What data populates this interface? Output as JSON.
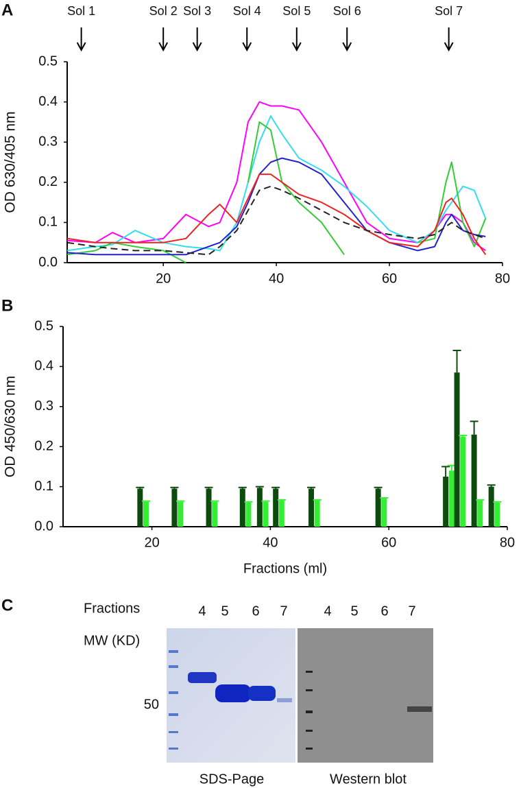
{
  "chart_data": [
    {
      "type": "line",
      "panel": "A",
      "y_label": "OD 630/405 nm",
      "xlim": [
        3,
        80
      ],
      "xticks": [
        20,
        40,
        60,
        80
      ],
      "ylim": [
        0,
        0.5
      ],
      "yticks": [
        {
          "value": 0,
          "label": "0.0"
        },
        0.1,
        0.2,
        0.3,
        0.4,
        0.5
      ],
      "annotations": [
        {
          "text": "Sol 1",
          "x": 5.5
        },
        {
          "text": "Sol 2",
          "x": 20
        },
        {
          "text": "Sol 3",
          "x": 26
        },
        {
          "text": "Sol 4",
          "x": 34.8
        },
        {
          "text": "Sol 5",
          "x": 43.6
        },
        {
          "text": "Sol 6",
          "x": 52.5
        },
        {
          "text": "Sol 7",
          "x": 70.5
        }
      ],
      "x": [
        3,
        8,
        11,
        15,
        20,
        24,
        28,
        30,
        33,
        35,
        37,
        39,
        41,
        44,
        48,
        52,
        56,
        60,
        65,
        68,
        70,
        71,
        73,
        75,
        77
      ],
      "series": [
        {
          "color": "#ff00ff",
          "dashed": false,
          "values": [
            0.055,
            0.05,
            0.075,
            0.05,
            0.06,
            0.12,
            0.09,
            0.1,
            0.2,
            0.35,
            0.4,
            0.39,
            0.39,
            0.38,
            0.3,
            0.2,
            0.1,
            0.06,
            0.05,
            0.08,
            0.12,
            0.12,
            0.1,
            0.05,
            0.03
          ]
        },
        {
          "color": "#33ddee",
          "dashed": false,
          "values": [
            0.03,
            0.04,
            0.045,
            0.08,
            0.05,
            0.04,
            0.035,
            0.03,
            0.1,
            0.2,
            0.3,
            0.365,
            0.32,
            0.26,
            0.23,
            0.19,
            0.14,
            0.08,
            0.05,
            0.08,
            0.13,
            0.15,
            0.19,
            0.18,
            0.11
          ]
        },
        {
          "color": "#33cc33",
          "dashed": false,
          "values": [
            0.02,
            0.03,
            0.05,
            0.04,
            0.03,
            0.0,
            null,
            null,
            null,
            0.2,
            0.35,
            0.33,
            0.2,
            0.15,
            0.1,
            0.02,
            null,
            null,
            0.05,
            0.06,
            0.2,
            0.25,
            0.1,
            0.04,
            0.11
          ]
        },
        {
          "color": "#2222cc",
          "dashed": false,
          "values": [
            0.025,
            0.02,
            0.02,
            0.02,
            0.02,
            0.02,
            0.04,
            0.05,
            0.09,
            0.15,
            0.22,
            0.25,
            0.26,
            0.25,
            0.22,
            0.15,
            0.08,
            0.05,
            0.03,
            0.04,
            0.1,
            0.12,
            0.08,
            0.07,
            0.065
          ]
        },
        {
          "color": "#ee2222",
          "dashed": false,
          "values": [
            0.06,
            0.05,
            0.05,
            0.05,
            0.05,
            0.06,
            0.12,
            0.145,
            0.1,
            0.16,
            0.22,
            0.22,
            0.2,
            0.17,
            0.15,
            0.12,
            0.08,
            0.05,
            0.04,
            0.08,
            0.15,
            0.16,
            0.12,
            0.06,
            0.02
          ]
        },
        {
          "color": "#222222",
          "dashed": true,
          "values": [
            0.05,
            0.04,
            0.035,
            0.03,
            0.03,
            0.025,
            0.02,
            0.04,
            0.08,
            0.13,
            0.18,
            0.19,
            0.18,
            0.16,
            0.13,
            0.1,
            0.08,
            0.07,
            0.06,
            0.07,
            0.09,
            0.1,
            0.08,
            0.07,
            0.06
          ]
        }
      ]
    },
    {
      "type": "bar",
      "panel": "B",
      "y_label": "OD 450/630 nm",
      "x_label": "Fractions (ml)",
      "xlim": [
        5,
        80
      ],
      "xticks": [
        20,
        40,
        60,
        80
      ],
      "ylim": [
        0,
        0.5
      ],
      "yticks": [
        {
          "value": 0,
          "label": "0.0"
        },
        0.1,
        0.2,
        0.3,
        0.4,
        0.5
      ],
      "x": [
        18.5,
        24.3,
        30.1,
        35.8,
        38.7,
        41.4,
        47.4,
        58.7,
        70.1,
        72.0,
        74.9,
        77.8
      ],
      "series": [
        {
          "color": "#0d4a0d",
          "values": [
            0.095,
            0.095,
            0.095,
            0.095,
            0.097,
            0.095,
            0.095,
            0.095,
            0.125,
            0.385,
            0.23,
            0.1
          ],
          "errors": [
            0.003,
            0.003,
            0.003,
            0.003,
            0.003,
            0.003,
            0.003,
            0.003,
            0.025,
            0.055,
            0.033,
            0.004
          ]
        },
        {
          "color": "#33ee33",
          "values": [
            0.062,
            0.062,
            0.062,
            0.06,
            0.062,
            0.065,
            0.065,
            0.07,
            0.14,
            0.225,
            0.065,
            0.06
          ],
          "errors": [
            0.002,
            0.002,
            0.002,
            0.002,
            0.002,
            0.002,
            0.002,
            0.002,
            0.013,
            0.003,
            0.002,
            0.002
          ]
        }
      ]
    }
  ],
  "gel": {
    "panel": "C",
    "row_label": "Fractions",
    "mw_label": "MW (KD)",
    "marker": 50,
    "sds_lanes": [
      "4",
      "5",
      "6",
      "7"
    ],
    "blot_lanes": [
      "4",
      "5",
      "6",
      "7"
    ],
    "sds_title": "SDS-Page",
    "blot_title": "Western blot"
  }
}
